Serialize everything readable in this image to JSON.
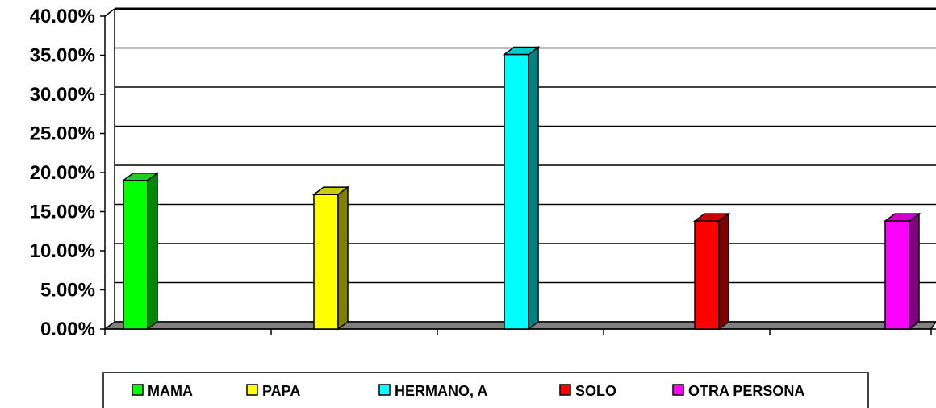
{
  "chart_data": {
    "type": "bar",
    "title": "",
    "xlabel": "",
    "ylabel": "",
    "ylim": [
      0,
      40
    ],
    "y_ticks": [
      "0.00%",
      "5.00%",
      "10.00%",
      "15.00%",
      "20.00%",
      "25.00%",
      "30.00%",
      "35.00%",
      "40.00%"
    ],
    "grid": true,
    "legend_position": "bottom",
    "categories": [
      "MAMA",
      "PAPA",
      "HERMANO, A",
      "SOLO",
      "OTRA PERSONA"
    ],
    "series": [
      {
        "values": [
          19.0,
          17.2,
          35.1,
          13.8,
          13.8
        ]
      }
    ],
    "colors": [
      "#00ff00",
      "#ffff00",
      "#00ffff",
      "#ff0000",
      "#ff00ff"
    ],
    "side_colors": [
      "#008800",
      "#808000",
      "#008080",
      "#800000",
      "#800080"
    ],
    "top_colors": [
      "#22cc22",
      "#cccc00",
      "#00cccc",
      "#cc0000",
      "#cc00cc"
    ]
  }
}
